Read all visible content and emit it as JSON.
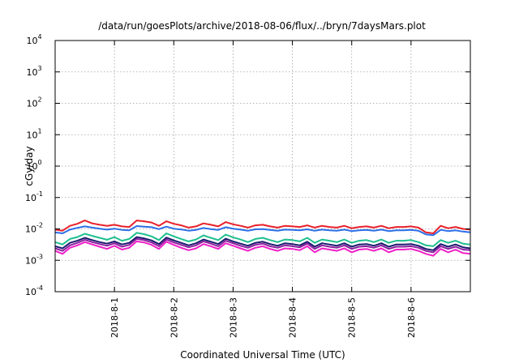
{
  "chart_data": {
    "type": "line",
    "title": "/data/run/goesPlots/archive/2018-08-06/flux/../bryn/7daysMars.plot",
    "xlabel": "Coordinated Universal Time (UTC)",
    "ylabel": "cGy/day",
    "y_scale": "log",
    "ylim": [
      0.0001,
      10000
    ],
    "y_ticks": [
      {
        "value": 0.0001,
        "base": "10",
        "exp": "-4"
      },
      {
        "value": 0.001,
        "base": "10",
        "exp": "-3"
      },
      {
        "value": 0.01,
        "base": "10",
        "exp": "-2"
      },
      {
        "value": 0.1,
        "base": "10",
        "exp": "-1"
      },
      {
        "value": 1,
        "base": "10",
        "exp": "0"
      },
      {
        "value": 10,
        "base": "10",
        "exp": "1"
      },
      {
        "value": 100,
        "base": "10",
        "exp": "2"
      },
      {
        "value": 1000,
        "base": "10",
        "exp": "3"
      },
      {
        "value": 10000,
        "base": "10",
        "exp": "4"
      }
    ],
    "xlim": [
      "2018-07-31 00:00",
      "2018-08-07 00:00"
    ],
    "x_ticks": [
      "2018-8-1",
      "2018-8-2",
      "2018-8-3",
      "2018-8-4",
      "2018-8-5",
      "2018-8-6"
    ],
    "grid": true,
    "x": [
      "2018-07-31 00:00",
      "2018-07-31 03:00",
      "2018-07-31 06:00",
      "2018-07-31 09:00",
      "2018-07-31 12:00",
      "2018-07-31 15:00",
      "2018-07-31 18:00",
      "2018-07-31 21:00",
      "2018-08-01 00:00",
      "2018-08-01 03:00",
      "2018-08-01 06:00",
      "2018-08-01 09:00",
      "2018-08-01 12:00",
      "2018-08-01 15:00",
      "2018-08-01 18:00",
      "2018-08-01 21:00",
      "2018-08-02 00:00",
      "2018-08-02 03:00",
      "2018-08-02 06:00",
      "2018-08-02 09:00",
      "2018-08-02 12:00",
      "2018-08-02 15:00",
      "2018-08-02 18:00",
      "2018-08-02 21:00",
      "2018-08-03 00:00",
      "2018-08-03 03:00",
      "2018-08-03 06:00",
      "2018-08-03 09:00",
      "2018-08-03 12:00",
      "2018-08-03 15:00",
      "2018-08-03 18:00",
      "2018-08-03 21:00",
      "2018-08-04 00:00",
      "2018-08-04 03:00",
      "2018-08-04 06:00",
      "2018-08-04 09:00",
      "2018-08-04 12:00",
      "2018-08-04 15:00",
      "2018-08-04 18:00",
      "2018-08-04 21:00",
      "2018-08-05 00:00",
      "2018-08-05 03:00",
      "2018-08-05 06:00",
      "2018-08-05 09:00",
      "2018-08-05 12:00",
      "2018-08-05 15:00",
      "2018-08-05 18:00",
      "2018-08-05 21:00",
      "2018-08-06 00:00",
      "2018-08-06 03:00",
      "2018-08-06 06:00",
      "2018-08-06 09:00",
      "2018-08-06 12:00",
      "2018-08-06 15:00",
      "2018-08-06 18:00",
      "2018-08-06 21:00",
      "2018-08-07 00:00"
    ],
    "series": [
      {
        "color": "#e8202a",
        "values": [
          0.0095,
          0.0088,
          0.0125,
          0.0145,
          0.0185,
          0.015,
          0.0135,
          0.0125,
          0.0135,
          0.012,
          0.0115,
          0.0185,
          0.0175,
          0.016,
          0.0125,
          0.0175,
          0.0145,
          0.013,
          0.011,
          0.012,
          0.015,
          0.0135,
          0.012,
          0.0165,
          0.014,
          0.0125,
          0.011,
          0.013,
          0.0135,
          0.012,
          0.011,
          0.0125,
          0.012,
          0.0115,
          0.013,
          0.011,
          0.0125,
          0.0115,
          0.011,
          0.0125,
          0.0105,
          0.0115,
          0.012,
          0.011,
          0.0125,
          0.0105,
          0.0115,
          0.0115,
          0.012,
          0.011,
          0.0078,
          0.0072,
          0.0125,
          0.0105,
          0.0115,
          0.01,
          0.0095
        ]
      },
      {
        "color": "#2b6fe8",
        "values": [
          0.0078,
          0.0072,
          0.0095,
          0.0108,
          0.012,
          0.011,
          0.0102,
          0.0095,
          0.0102,
          0.0093,
          0.009,
          0.0123,
          0.0118,
          0.0113,
          0.0098,
          0.0118,
          0.0102,
          0.0096,
          0.0088,
          0.0093,
          0.0107,
          0.0098,
          0.0093,
          0.0113,
          0.0102,
          0.0095,
          0.0087,
          0.0097,
          0.0098,
          0.0093,
          0.0087,
          0.0095,
          0.0093,
          0.009,
          0.0097,
          0.0087,
          0.0095,
          0.009,
          0.0087,
          0.0095,
          0.0085,
          0.009,
          0.0093,
          0.0087,
          0.0095,
          0.0085,
          0.009,
          0.009,
          0.0093,
          0.0087,
          0.0067,
          0.0063,
          0.0093,
          0.0085,
          0.009,
          0.0082,
          0.0078
        ]
      },
      {
        "color": "#1fbf8f",
        "values": [
          0.0038,
          0.0032,
          0.0048,
          0.0055,
          0.007,
          0.006,
          0.0052,
          0.0045,
          0.0055,
          0.0042,
          0.0048,
          0.0075,
          0.0068,
          0.0058,
          0.0044,
          0.0072,
          0.0058,
          0.0048,
          0.004,
          0.0046,
          0.0062,
          0.0052,
          0.0044,
          0.0066,
          0.0054,
          0.0046,
          0.0038,
          0.0048,
          0.0052,
          0.0044,
          0.0038,
          0.0046,
          0.0044,
          0.004,
          0.0052,
          0.0036,
          0.0046,
          0.0042,
          0.0038,
          0.0046,
          0.0036,
          0.0042,
          0.0044,
          0.0038,
          0.0046,
          0.0036,
          0.0042,
          0.0042,
          0.0044,
          0.0038,
          0.003,
          0.0028,
          0.0044,
          0.0036,
          0.0042,
          0.0034,
          0.0032
        ]
      },
      {
        "color": "#1a1a6e",
        "values": [
          0.0028,
          0.0024,
          0.0036,
          0.0042,
          0.0052,
          0.0044,
          0.0038,
          0.0034,
          0.004,
          0.0032,
          0.0036,
          0.0055,
          0.005,
          0.0043,
          0.0033,
          0.0053,
          0.0043,
          0.0036,
          0.003,
          0.0035,
          0.0046,
          0.0039,
          0.0033,
          0.0049,
          0.004,
          0.0034,
          0.0029,
          0.0036,
          0.0039,
          0.0033,
          0.0029,
          0.0035,
          0.0033,
          0.003,
          0.0039,
          0.0027,
          0.0035,
          0.0032,
          0.0029,
          0.0035,
          0.0027,
          0.0032,
          0.0033,
          0.0029,
          0.0035,
          0.0027,
          0.0032,
          0.0032,
          0.0033,
          0.0029,
          0.0023,
          0.0021,
          0.0033,
          0.0027,
          0.0032,
          0.0026,
          0.0024
        ]
      },
      {
        "color": "#8c1f9e",
        "values": [
          0.0024,
          0.002,
          0.003,
          0.0036,
          0.0045,
          0.0038,
          0.0033,
          0.0029,
          0.0035,
          0.0027,
          0.0031,
          0.0048,
          0.0044,
          0.0037,
          0.0028,
          0.0046,
          0.0037,
          0.0031,
          0.0026,
          0.003,
          0.004,
          0.0034,
          0.0028,
          0.0042,
          0.0035,
          0.0029,
          0.0025,
          0.0031,
          0.0034,
          0.0028,
          0.0025,
          0.003,
          0.0028,
          0.0026,
          0.0034,
          0.0023,
          0.003,
          0.0027,
          0.0025,
          0.003,
          0.0023,
          0.0027,
          0.0028,
          0.0025,
          0.003,
          0.0023,
          0.0027,
          0.0027,
          0.0028,
          0.0025,
          0.002,
          0.0018,
          0.0028,
          0.0023,
          0.0027,
          0.0022,
          0.0021
        ]
      },
      {
        "color": "#f020c8",
        "values": [
          0.002,
          0.0016,
          0.0025,
          0.003,
          0.0038,
          0.0032,
          0.0027,
          0.0023,
          0.0029,
          0.0022,
          0.0025,
          0.004,
          0.0037,
          0.0031,
          0.0023,
          0.0039,
          0.0031,
          0.0025,
          0.0021,
          0.0024,
          0.0033,
          0.0028,
          0.0023,
          0.0035,
          0.0029,
          0.0024,
          0.002,
          0.0025,
          0.0028,
          0.0023,
          0.002,
          0.0024,
          0.0023,
          0.0021,
          0.0028,
          0.0018,
          0.0024,
          0.0022,
          0.002,
          0.0024,
          0.0018,
          0.0022,
          0.0023,
          0.002,
          0.0024,
          0.0018,
          0.0022,
          0.0022,
          0.0023,
          0.002,
          0.0016,
          0.0014,
          0.0023,
          0.0018,
          0.0022,
          0.0017,
          0.0016
        ]
      }
    ]
  }
}
